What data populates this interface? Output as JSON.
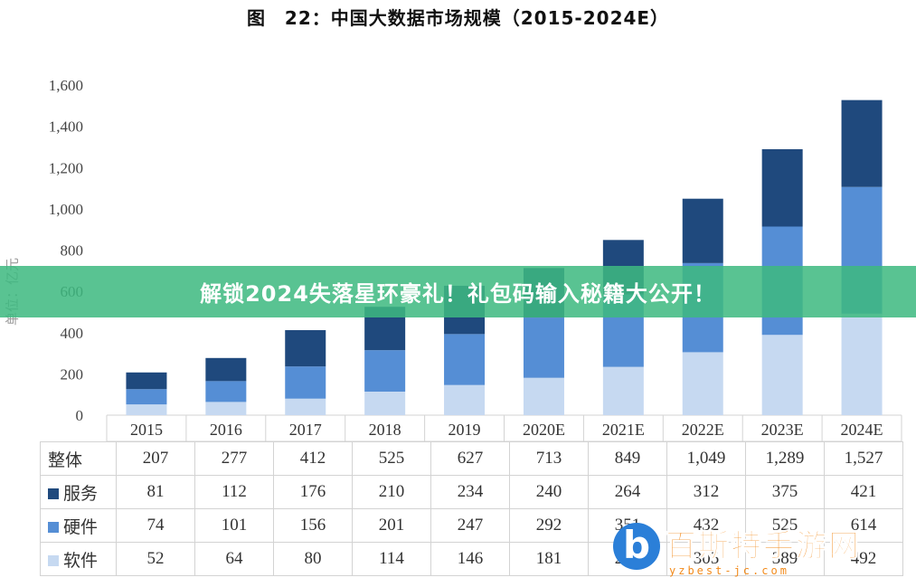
{
  "title": "图　22：中国大数据市场规模（2015-2024E）",
  "banner": "解锁2024失落星环豪礼！礼包码输入秘籍大公开！",
  "watermark": {
    "text": "百斯特手游网",
    "url": "yzbest-jc.com",
    "logo": "b"
  },
  "chart_data": {
    "type": "bar",
    "stacked": true,
    "categories": [
      "2015",
      "2016",
      "2017",
      "2018",
      "2019",
      "2020E",
      "2021E",
      "2022E",
      "2023E",
      "2024E"
    ],
    "series": [
      {
        "name": "服务",
        "values": [
          81,
          112,
          176,
          210,
          234,
          240,
          264,
          312,
          375,
          421
        ],
        "color": "#1f497d"
      },
      {
        "name": "硬件",
        "values": [
          74,
          101,
          156,
          201,
          247,
          292,
          351,
          432,
          525,
          614
        ],
        "color": "#558ed5"
      },
      {
        "name": "软件",
        "values": [
          52,
          64,
          80,
          114,
          146,
          181,
          234,
          305,
          389,
          492
        ],
        "color": "#c6d9f1"
      }
    ],
    "totals_label": "整体",
    "totals": [
      207,
      277,
      412,
      525,
      627,
      713,
      849,
      1049,
      1289,
      1527
    ],
    "ylabel": "单位：亿元",
    "ylim": [
      0,
      1600
    ],
    "yticks": [
      "0",
      "200",
      "400",
      "600",
      "800",
      "1,000",
      "1,200",
      "1,400",
      "1,600"
    ],
    "grid": false,
    "legend": "table-below"
  },
  "table": {
    "rows": [
      {
        "label": "整体",
        "cells": [
          "207",
          "277",
          "412",
          "525",
          "627",
          "713",
          "849",
          "1,049",
          "1,289",
          "1,527"
        ]
      },
      {
        "label": "服务",
        "color": "#1f497d",
        "cells": [
          "81",
          "112",
          "176",
          "210",
          "234",
          "240",
          "264",
          "312",
          "375",
          "421"
        ]
      },
      {
        "label": "硬件",
        "color": "#558ed5",
        "cells": [
          "74",
          "101",
          "156",
          "201",
          "247",
          "292",
          "351",
          "432",
          "525",
          "614"
        ]
      },
      {
        "label": "软件",
        "color": "#c6d9f1",
        "cells": [
          "52",
          "64",
          "80",
          "114",
          "146",
          "181",
          "234",
          "305",
          "389",
          "492"
        ]
      }
    ]
  }
}
